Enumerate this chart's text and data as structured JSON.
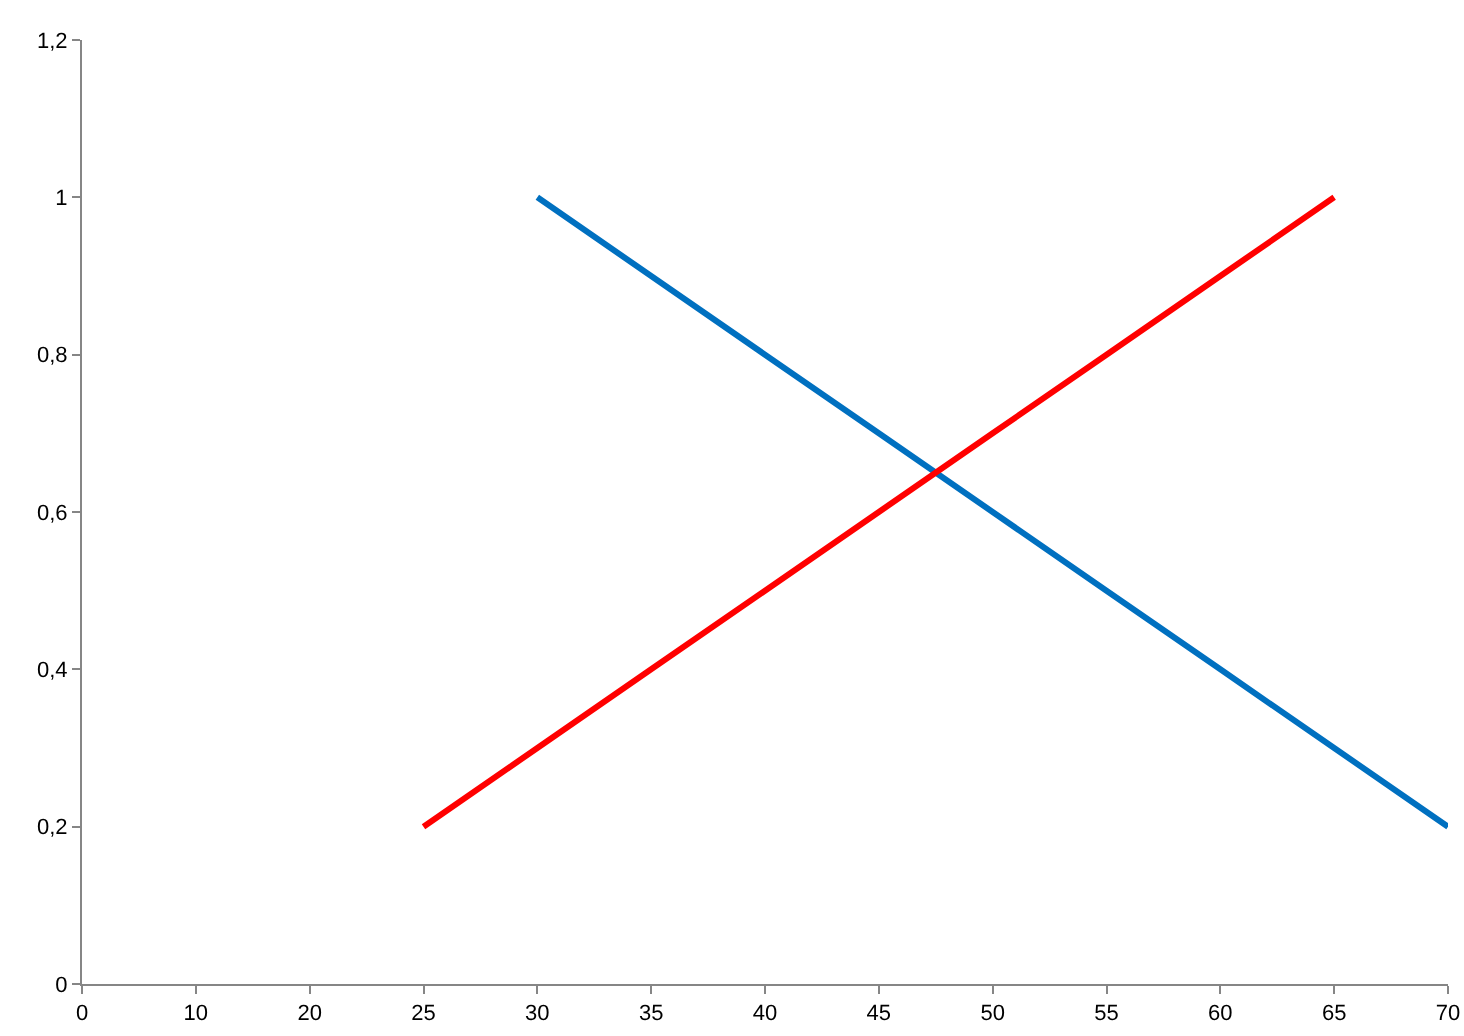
{
  "chart_data": {
    "type": "line",
    "categories": [
      "0",
      "10",
      "20",
      "25",
      "30",
      "35",
      "40",
      "45",
      "50",
      "55",
      "60",
      "65",
      "70"
    ],
    "series": [
      {
        "color": "#0070c0",
        "values": [
          null,
          null,
          null,
          null,
          1,
          0.9,
          0.8,
          0.7,
          0.6,
          0.5,
          0.4,
          0.3,
          0.2
        ]
      },
      {
        "color": "#ff0000",
        "values": [
          null,
          null,
          null,
          0.2,
          0.3,
          0.4,
          0.5,
          0.6,
          0.7,
          0.8,
          0.9,
          1,
          null
        ]
      }
    ],
    "ylim": [
      0,
      1.2
    ],
    "yticks": [
      0,
      {
        "value": 0.2,
        "label": "0,2"
      },
      {
        "value": 0.4,
        "label": "0,4"
      },
      {
        "value": 0.6,
        "label": "0,6"
      },
      {
        "value": 0.8,
        "label": "0,8"
      },
      1,
      {
        "value": 1.2,
        "label": "1,2"
      }
    ],
    "grid": false,
    "marker": "none",
    "line_style": "solid"
  }
}
